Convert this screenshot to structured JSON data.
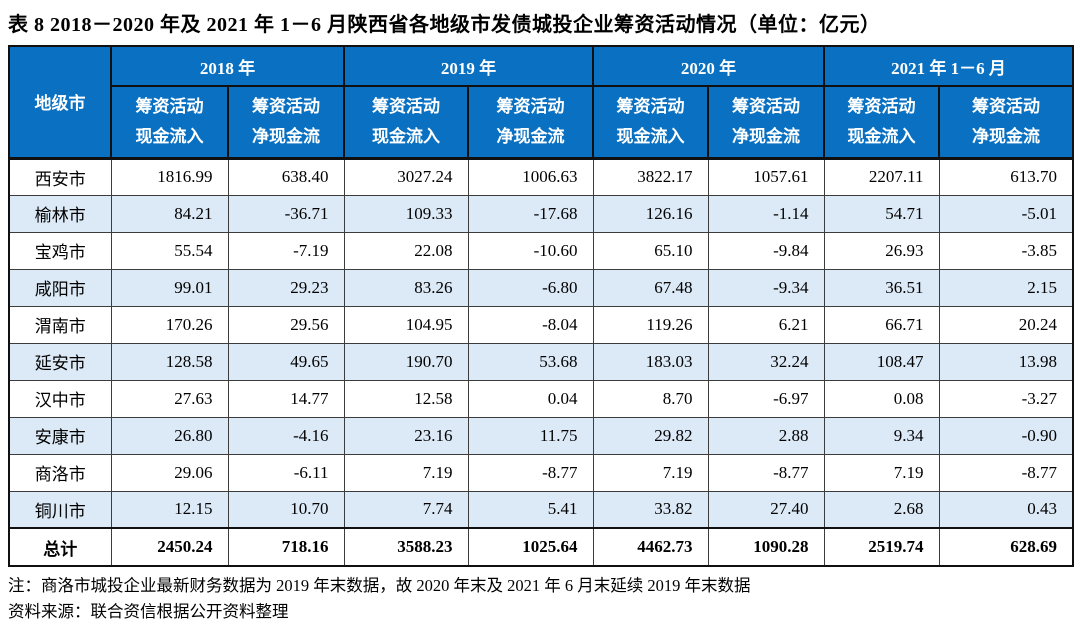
{
  "title": "表 8   2018－2020 年及 2021 年 1－6 月陕西省各地级市发债城投企业筹资活动情况（单位：亿元）",
  "colors": {
    "header_bg": "#0A71C2",
    "header_text": "#FFFFFF",
    "alt_row_bg": "#DCE9F6",
    "border": "#101010",
    "body_text": "#000000"
  },
  "table": {
    "city_header": "地级市",
    "year_groups": [
      "2018 年",
      "2019 年",
      "2020 年",
      "2021 年 1－6 月"
    ],
    "subcols": {
      "inflow": [
        "筹资活动",
        "现金流入"
      ],
      "net": [
        "筹资活动",
        "净现金流"
      ]
    },
    "rows": [
      {
        "city": "西安市",
        "values": [
          "1816.99",
          "638.40",
          "3027.24",
          "1006.63",
          "3822.17",
          "1057.61",
          "2207.11",
          "613.70"
        ]
      },
      {
        "city": "榆林市",
        "values": [
          "84.21",
          "-36.71",
          "109.33",
          "-17.68",
          "126.16",
          "-1.14",
          "54.71",
          "-5.01"
        ]
      },
      {
        "city": "宝鸡市",
        "values": [
          "55.54",
          "-7.19",
          "22.08",
          "-10.60",
          "65.10",
          "-9.84",
          "26.93",
          "-3.85"
        ]
      },
      {
        "city": "咸阳市",
        "values": [
          "99.01",
          "29.23",
          "83.26",
          "-6.80",
          "67.48",
          "-9.34",
          "36.51",
          "2.15"
        ]
      },
      {
        "city": "渭南市",
        "values": [
          "170.26",
          "29.56",
          "104.95",
          "-8.04",
          "119.26",
          "6.21",
          "66.71",
          "20.24"
        ]
      },
      {
        "city": "延安市",
        "values": [
          "128.58",
          "49.65",
          "190.70",
          "53.68",
          "183.03",
          "32.24",
          "108.47",
          "13.98"
        ]
      },
      {
        "city": "汉中市",
        "values": [
          "27.63",
          "14.77",
          "12.58",
          "0.04",
          "8.70",
          "-6.97",
          "0.08",
          "-3.27"
        ]
      },
      {
        "city": "安康市",
        "values": [
          "26.80",
          "-4.16",
          "23.16",
          "11.75",
          "29.82",
          "2.88",
          "9.34",
          "-0.90"
        ]
      },
      {
        "city": "商洛市",
        "values": [
          "29.06",
          "-6.11",
          "7.19",
          "-8.77",
          "7.19",
          "-8.77",
          "7.19",
          "-8.77"
        ]
      },
      {
        "city": "铜川市",
        "values": [
          "12.15",
          "10.70",
          "7.74",
          "5.41",
          "33.82",
          "27.40",
          "2.68",
          "0.43"
        ]
      }
    ],
    "total": {
      "label": "总计",
      "values": [
        "2450.24",
        "718.16",
        "3588.23",
        "1025.64",
        "4462.73",
        "1090.28",
        "2519.74",
        "628.69"
      ]
    }
  },
  "notes": {
    "note1": "注：商洛市城投企业最新财务数据为 2019 年末数据，故 2020 年末及 2021 年 6 月末延续 2019 年末数据",
    "source": "资料来源：联合资信根据公开资料整理"
  }
}
